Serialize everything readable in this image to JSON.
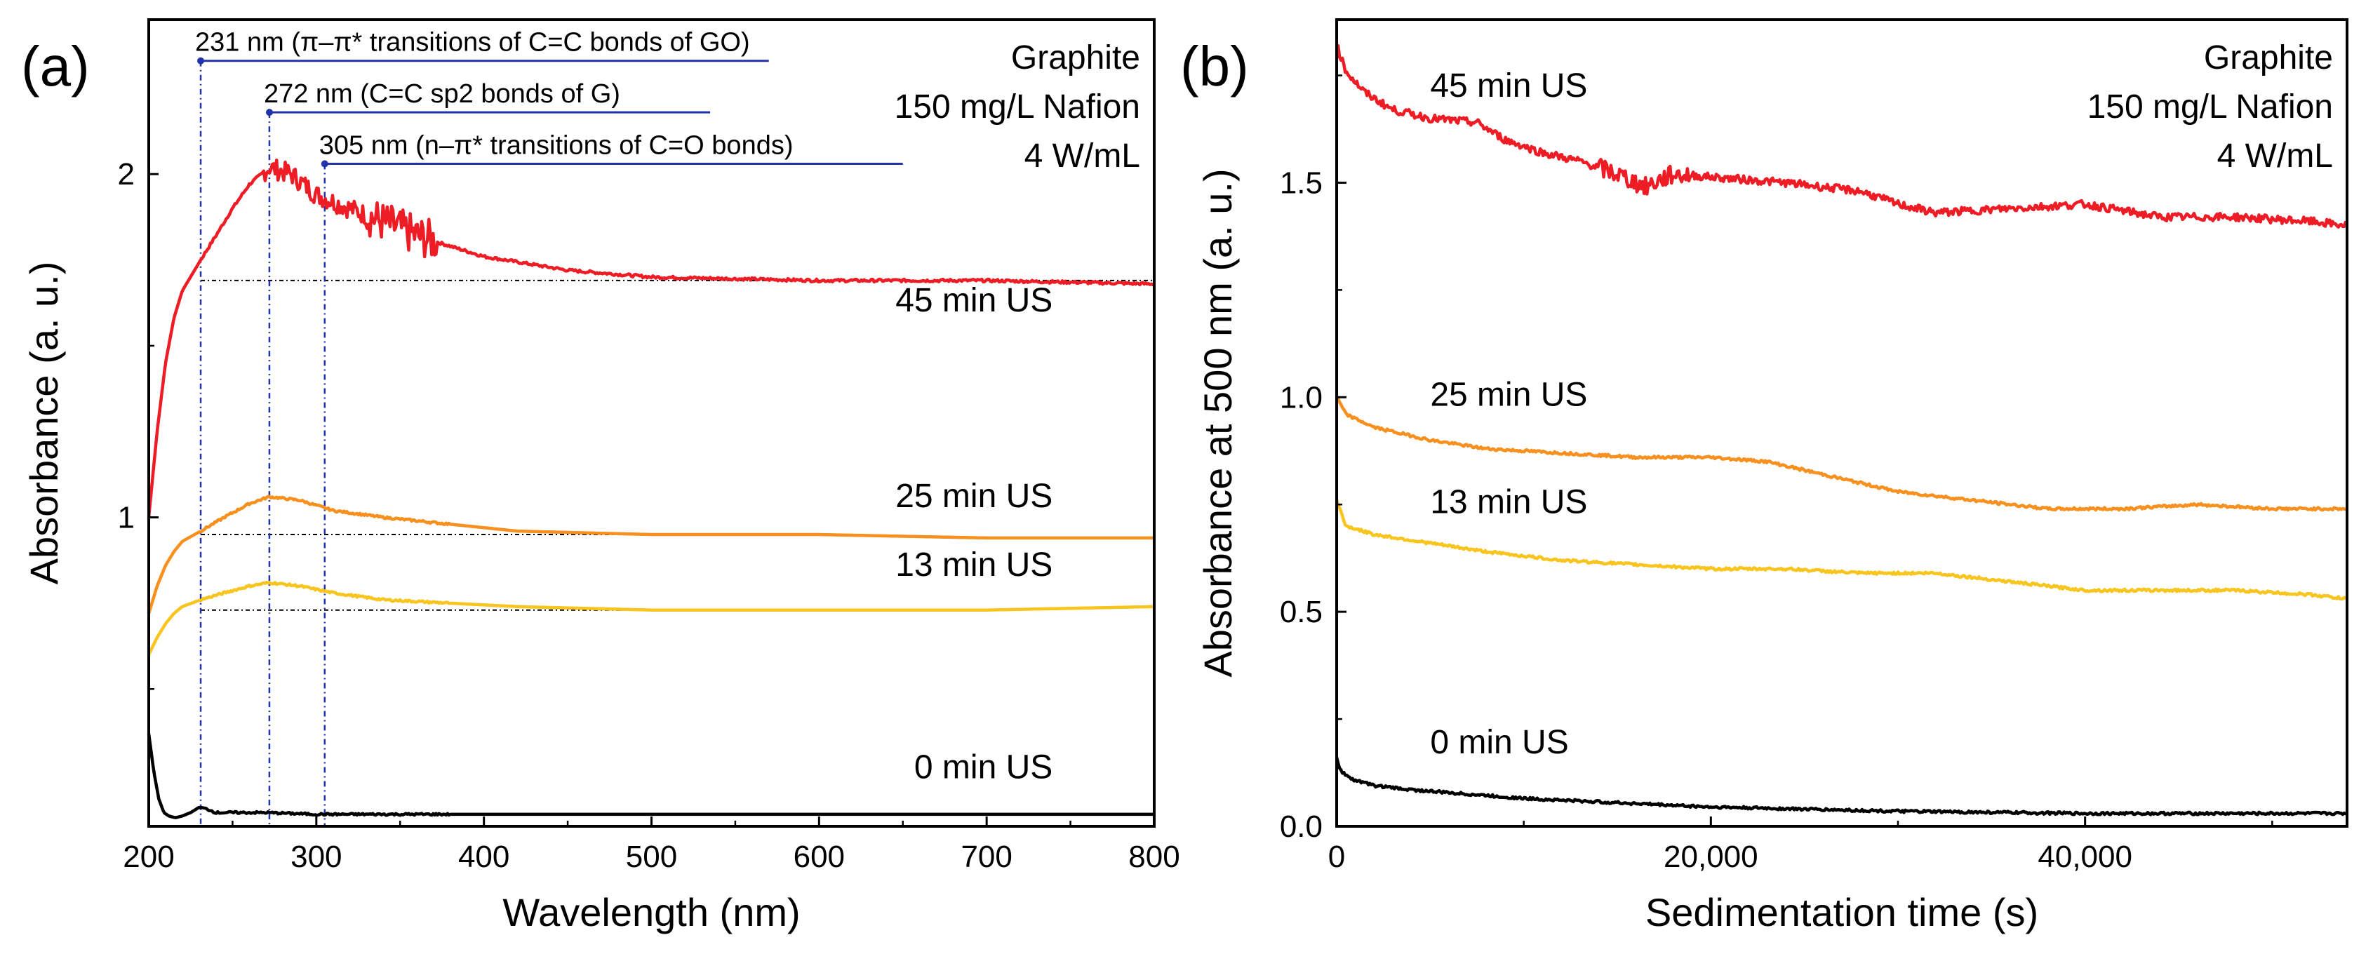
{
  "chart_data": [
    {
      "panel": "(a)",
      "type": "line",
      "xlabel": "Wavelength (nm)",
      "ylabel": "Absorbance (a. u.)",
      "xlim": [
        200,
        800
      ],
      "ylim": [
        0.1,
        2.45
      ],
      "xticks": [
        200,
        300,
        400,
        500,
        600,
        700,
        800
      ],
      "yticks": [
        1,
        2
      ],
      "info": [
        "Graphite",
        "150 mg/L Nafion",
        "4 W/mL"
      ],
      "series": [
        {
          "name": "45 min US",
          "color": "#ee1c25",
          "x": [
            200,
            205,
            210,
            215,
            220,
            231,
            240,
            250,
            260,
            272,
            285,
            300,
            330,
            360,
            380,
            400,
            450,
            500,
            600,
            700,
            800
          ],
          "y": [
            1.0,
            1.25,
            1.45,
            1.58,
            1.66,
            1.75,
            1.82,
            1.9,
            1.97,
            2.02,
            2.0,
            1.94,
            1.88,
            1.82,
            1.79,
            1.76,
            1.72,
            1.7,
            1.69,
            1.69,
            1.68
          ],
          "label_x": 690,
          "label_y": 1.6
        },
        {
          "name": "25 min US",
          "color": "#f7901e",
          "x": [
            200,
            205,
            210,
            215,
            220,
            231,
            245,
            260,
            272,
            290,
            310,
            340,
            380,
            420,
            500,
            600,
            700,
            800
          ],
          "y": [
            0.72,
            0.8,
            0.86,
            0.9,
            0.93,
            0.96,
            1.0,
            1.04,
            1.06,
            1.05,
            1.02,
            1.0,
            0.98,
            0.96,
            0.95,
            0.95,
            0.94,
            0.94
          ],
          "label_x": 690,
          "label_y": 1.03
        },
        {
          "name": "13 min US",
          "color": "#f7c51e",
          "x": [
            200,
            205,
            210,
            215,
            220,
            231,
            245,
            260,
            272,
            290,
            310,
            340,
            380,
            420,
            500,
            600,
            700,
            800
          ],
          "y": [
            0.6,
            0.65,
            0.69,
            0.72,
            0.74,
            0.76,
            0.78,
            0.8,
            0.81,
            0.8,
            0.78,
            0.76,
            0.75,
            0.74,
            0.73,
            0.73,
            0.73,
            0.74
          ],
          "label_x": 690,
          "label_y": 0.83
        },
        {
          "name": "0 min US",
          "color": "#000000",
          "x": [
            200,
            203,
            206,
            209,
            212,
            216,
            220,
            225,
            230,
            235,
            240,
            250,
            270,
            300,
            400,
            500,
            600,
            700,
            800
          ],
          "y": [
            0.37,
            0.26,
            0.18,
            0.14,
            0.13,
            0.125,
            0.13,
            0.14,
            0.155,
            0.15,
            0.14,
            0.14,
            0.14,
            0.135,
            0.135,
            0.135,
            0.135,
            0.135,
            0.135
          ],
          "label_x": 690,
          "label_y": 0.24
        }
      ],
      "reference_lines": [
        {
          "x": 231,
          "text": "231 nm (π–π* transitions of C=C bonds of GO)"
        },
        {
          "x": 272,
          "text": "272 nm (C=C sp2 bonds of G)"
        },
        {
          "x": 305,
          "text": "305 nm (n–π* transitions of C=O bonds)"
        }
      ]
    },
    {
      "panel": "(b)",
      "type": "line",
      "xlabel": "Sedimentation time (s)",
      "ylabel": "Absorbance at 500 nm (a. u.)",
      "xlim": [
        0,
        54000
      ],
      "ylim": [
        0,
        1.88
      ],
      "xticks": [
        0,
        20000,
        40000
      ],
      "xtick_labels": [
        "0",
        "20,000",
        "40,000"
      ],
      "yticks": [
        0,
        0.5,
        1.0,
        1.5
      ],
      "ytick_labels": [
        "0.0",
        "0.5",
        "1.0",
        "1.5"
      ],
      "info": [
        "Graphite",
        "150 mg/L Nafion",
        "4 W/mL"
      ],
      "series": [
        {
          "name": "45 min US",
          "color": "#ee1c25",
          "x": [
            0,
            500,
            1500,
            3000,
            5000,
            7500,
            9000,
            11000,
            13000,
            15000,
            16500,
            18000,
            21000,
            24000,
            28000,
            30000,
            32000,
            36000,
            40000,
            44000,
            48000,
            52000,
            54000
          ],
          "y": [
            1.82,
            1.76,
            1.71,
            1.67,
            1.65,
            1.64,
            1.6,
            1.57,
            1.55,
            1.52,
            1.49,
            1.52,
            1.51,
            1.5,
            1.48,
            1.45,
            1.43,
            1.44,
            1.45,
            1.42,
            1.42,
            1.41,
            1.4
          ],
          "label_x": 5000,
          "label_y": 1.7
        },
        {
          "name": "25 min US",
          "color": "#f7901e",
          "x": [
            0,
            500,
            2000,
            5000,
            8000,
            12000,
            16000,
            20000,
            23000,
            26000,
            30000,
            34000,
            38000,
            42000,
            46000,
            50000,
            54000
          ],
          "y": [
            1.0,
            0.96,
            0.93,
            0.9,
            0.88,
            0.87,
            0.86,
            0.86,
            0.85,
            0.82,
            0.78,
            0.76,
            0.74,
            0.74,
            0.75,
            0.74,
            0.74
          ],
          "label_x": 5000,
          "label_y": 0.98
        },
        {
          "name": "13 min US",
          "color": "#f7c51e",
          "x": [
            0,
            500,
            2000,
            5000,
            8000,
            12000,
            16000,
            20000,
            24000,
            28000,
            32000,
            36000,
            40000,
            44000,
            48000,
            52000,
            54000
          ],
          "y": [
            0.76,
            0.7,
            0.68,
            0.66,
            0.64,
            0.62,
            0.61,
            0.6,
            0.6,
            0.59,
            0.59,
            0.57,
            0.55,
            0.55,
            0.55,
            0.54,
            0.53
          ],
          "label_x": 5000,
          "label_y": 0.73
        },
        {
          "name": "0 min US",
          "color": "#000000",
          "x": [
            0,
            200,
            800,
            2000,
            4000,
            7000,
            10000,
            15000,
            20000,
            25000,
            30000,
            40000,
            50000,
            54000
          ],
          "y": [
            0.16,
            0.13,
            0.11,
            0.095,
            0.085,
            0.075,
            0.065,
            0.055,
            0.045,
            0.04,
            0.035,
            0.03,
            0.03,
            0.03
          ],
          "label_x": 5000,
          "label_y": 0.17
        }
      ]
    }
  ]
}
